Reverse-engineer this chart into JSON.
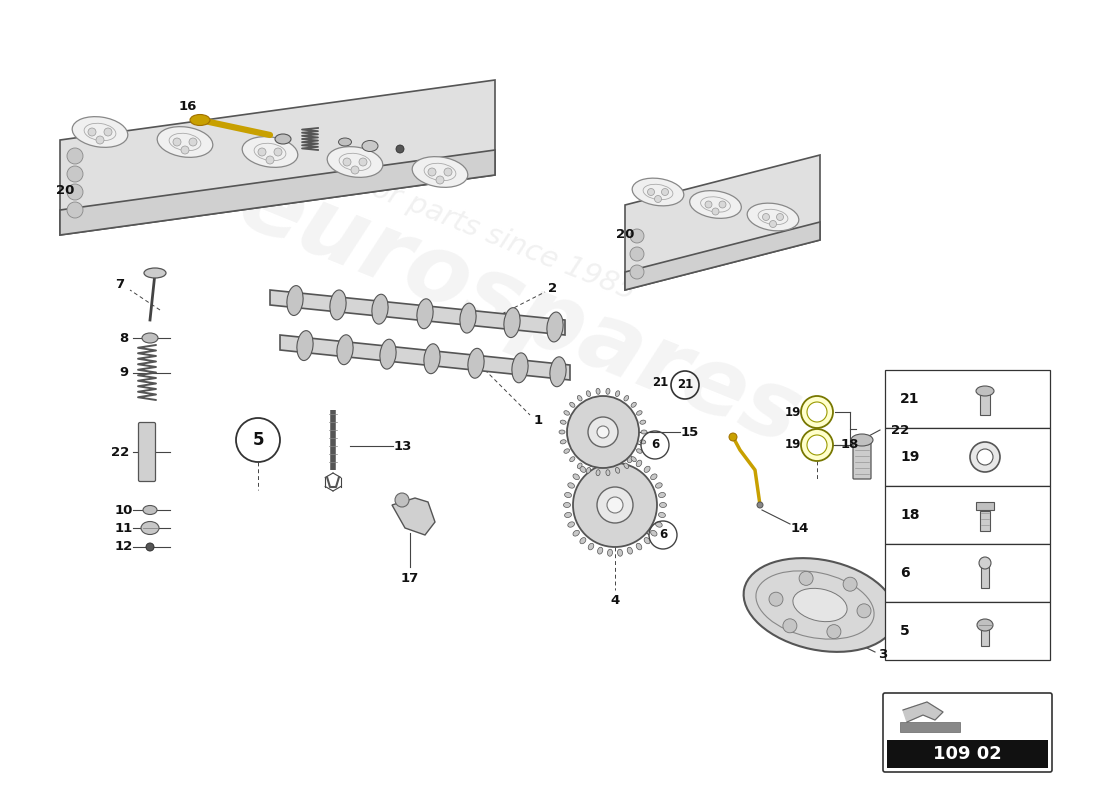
{
  "bg_color": "#ffffff",
  "part_number": "109 02",
  "watermark_line1": "eurospares",
  "watermark_line2": "a passion for parts since 1985",
  "legend_nums": [
    21,
    19,
    18,
    6,
    5
  ],
  "label_color": "#111111",
  "line_color": "#444444",
  "part_color": "#cccccc",
  "part_edge": "#555555",
  "head_fill": "#e0e0e0",
  "head_edge": "#555555"
}
